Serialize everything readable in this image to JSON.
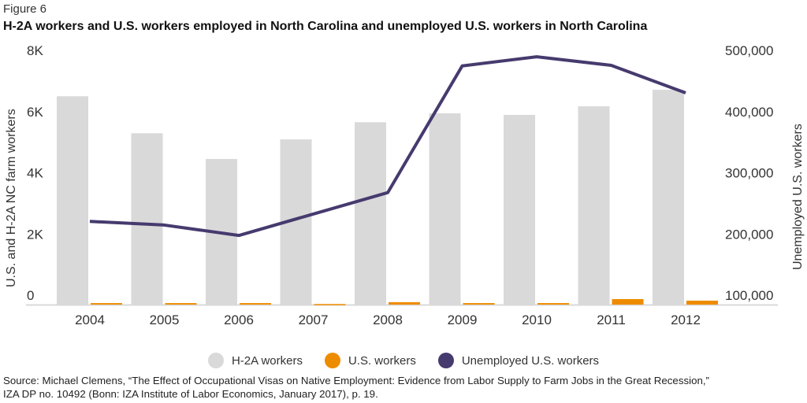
{
  "figure_label": "Figure 6",
  "chart_data": {
    "type": "bar+line",
    "title": "H-2A workers and U.S. workers employed in North Carolina and unemployed U.S. workers in North Carolina",
    "categories": [
      "2004",
      "2005",
      "2006",
      "2007",
      "2008",
      "2009",
      "2010",
      "2011",
      "2012"
    ],
    "ylabel_left": "U.S. and H-2A NC farm workers",
    "ylabel_right": "Unemployed U.S. workers",
    "ylim_left": [
      0,
      8000
    ],
    "ylim_right": [
      100000,
      500000
    ],
    "left_ticks": [
      {
        "v": 0,
        "label": "0"
      },
      {
        "v": 2000,
        "label": "2K"
      },
      {
        "v": 4000,
        "label": "4K"
      },
      {
        "v": 6000,
        "label": "6K"
      },
      {
        "v": 8000,
        "label": "8K"
      }
    ],
    "right_ticks": [
      {
        "v": 100000,
        "label": "100,000"
      },
      {
        "v": 200000,
        "label": "200,000"
      },
      {
        "v": 300000,
        "label": "300,000"
      },
      {
        "v": 400000,
        "label": "400,000"
      },
      {
        "v": 500000,
        "label": "500,000"
      }
    ],
    "grid": false,
    "legend_position": "bottom",
    "series": [
      {
        "name": "H-2A workers",
        "type": "bar",
        "axis": "left",
        "color": "#d9d9d9",
        "values": [
          6810,
          5600,
          4760,
          5400,
          5960,
          6250,
          6200,
          6480,
          7020
        ]
      },
      {
        "name": "U.S. workers",
        "type": "bar",
        "axis": "left",
        "color": "#ee8c00",
        "values": [
          50,
          50,
          50,
          20,
          80,
          50,
          50,
          180,
          130
        ]
      },
      {
        "name": "Unemployed U.S. workers",
        "type": "line",
        "axis": "right",
        "color": "#463a6e",
        "values": [
          236000,
          230000,
          213000,
          248000,
          283000,
          490000,
          505000,
          491000,
          446000
        ]
      }
    ]
  },
  "source": {
    "line1": "Source: Michael Clemens, “The Effect of Occupational Visas on Native Employment: Evidence from Labor Supply to Farm Jobs in the Great Recession,”",
    "line2": "IZA DP no. 10492 (Bonn: IZA Institute of Labor Economics, January 2017), p. 19."
  }
}
